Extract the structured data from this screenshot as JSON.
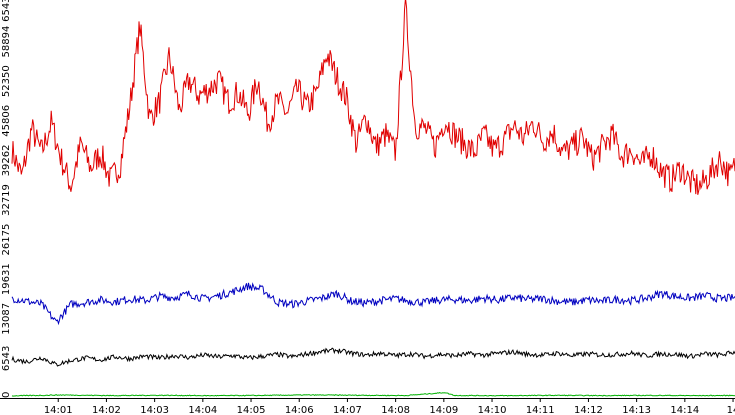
{
  "chart_data": {
    "type": "line",
    "xlabel": "",
    "ylabel": "",
    "ylim": [
      0,
      65438
    ],
    "grid": false,
    "legend": "none",
    "y_ticks": [
      {
        "value": 0,
        "label": "0"
      },
      {
        "value": 6543,
        "label": "6543"
      },
      {
        "value": 13087,
        "label": "13087"
      },
      {
        "value": 19631,
        "label": "19631"
      },
      {
        "value": 26175,
        "label": "26175"
      },
      {
        "value": 32719,
        "label": "32719"
      },
      {
        "value": 39262,
        "label": "39262"
      },
      {
        "value": 45806,
        "label": "45806"
      },
      {
        "value": 52350,
        "label": "52350"
      },
      {
        "value": 58894,
        "label": "58894"
      },
      {
        "value": 65438,
        "label": "65438"
      }
    ],
    "x_range_minutes": [
      0,
      14.7
    ],
    "x_ticks": [
      {
        "value": 0.94,
        "label": "14:01"
      },
      {
        "value": 1.92,
        "label": "14:02"
      },
      {
        "value": 2.9,
        "label": "14:03"
      },
      {
        "value": 3.88,
        "label": "14:04"
      },
      {
        "value": 4.86,
        "label": "14:05"
      },
      {
        "value": 5.84,
        "label": "14:06"
      },
      {
        "value": 6.82,
        "label": "14:07"
      },
      {
        "value": 7.8,
        "label": "14:08"
      },
      {
        "value": 8.78,
        "label": "14:09"
      },
      {
        "value": 9.76,
        "label": "14:10"
      },
      {
        "value": 10.74,
        "label": "14:11"
      },
      {
        "value": 11.72,
        "label": "14:12"
      },
      {
        "value": 12.7,
        "label": "14:13"
      },
      {
        "value": 13.68,
        "label": "14:14"
      },
      {
        "value": 14.66,
        "label": "14"
      }
    ],
    "series": [
      {
        "color": "#e00000",
        "x": [
          0,
          0.2,
          0.4,
          0.6,
          0.8,
          1.0,
          1.2,
          1.4,
          1.6,
          1.8,
          2.0,
          2.2,
          2.4,
          2.6,
          2.8,
          3.0,
          3.2,
          3.4,
          3.6,
          3.8,
          4.0,
          4.2,
          4.4,
          4.6,
          4.8,
          5.0,
          5.2,
          5.4,
          5.6,
          5.8,
          6.0,
          6.2,
          6.4,
          6.6,
          6.8,
          7.0,
          7.2,
          7.4,
          7.6,
          7.8,
          8.0,
          8.2,
          8.4,
          8.6,
          8.8,
          9.0,
          9.2,
          9.4,
          9.6,
          9.8,
          10.0,
          10.2,
          10.4,
          10.6,
          10.8,
          11.0,
          11.2,
          11.4,
          11.6,
          11.8,
          12.0,
          12.2,
          12.4,
          12.6,
          12.8,
          13.0,
          13.2,
          13.4,
          13.6,
          13.8,
          14.0,
          14.2,
          14.4,
          14.6,
          14.7
        ],
        "y": [
          41000,
          36500,
          44500,
          40500,
          45500,
          39500,
          35000,
          42000,
          38000,
          40500,
          36000,
          38500,
          48500,
          61500,
          46000,
          49000,
          56500,
          47500,
          52500,
          50000,
          51000,
          52500,
          49000,
          50500,
          47000,
          52500,
          45500,
          49000,
          47000,
          51000,
          48000,
          50500,
          57000,
          53000,
          49500,
          42000,
          46500,
          41500,
          43500,
          40500,
          64500,
          45000,
          44500,
          41500,
          46000,
          43500,
          42000,
          40500,
          43500,
          41000,
          42500,
          45000,
          43000,
          45500,
          42500,
          44000,
          40500,
          41500,
          43000,
          39500,
          41500,
          43500,
          40000,
          41000,
          38500,
          40500,
          37500,
          36000,
          38000,
          35500,
          35000,
          37000,
          39500,
          36500,
          38500
        ]
      },
      {
        "color": "#0000c0",
        "x": [
          0,
          0.3,
          0.6,
          0.9,
          1.2,
          1.5,
          1.8,
          2.1,
          2.4,
          2.7,
          3.0,
          3.3,
          3.6,
          3.9,
          4.2,
          4.5,
          4.8,
          5.1,
          5.4,
          5.7,
          6.0,
          6.3,
          6.6,
          6.9,
          7.2,
          7.5,
          7.8,
          8.1,
          8.4,
          8.7,
          9.0,
          9.3,
          9.6,
          9.9,
          10.2,
          10.5,
          10.8,
          11.1,
          11.4,
          11.7,
          12.0,
          12.3,
          12.6,
          12.9,
          13.2,
          13.5,
          13.8,
          14.1,
          14.4,
          14.7
        ],
        "y": [
          16500,
          16000,
          15500,
          12500,
          15500,
          15800,
          16200,
          15900,
          16400,
          16100,
          16800,
          16600,
          17200,
          16400,
          16900,
          17600,
          18500,
          17900,
          15800,
          15500,
          16000,
          16500,
          17300,
          16000,
          15700,
          16100,
          16400,
          16000,
          15800,
          16200,
          16300,
          16100,
          16500,
          16200,
          16600,
          16300,
          16400,
          16000,
          15800,
          16200,
          16000,
          16300,
          16100,
          16500,
          17300,
          16800,
          16500,
          16900,
          16400,
          16600
        ]
      },
      {
        "color": "#000000",
        "x": [
          0,
          0.3,
          0.6,
          0.9,
          1.2,
          1.5,
          1.8,
          2.1,
          2.4,
          2.7,
          3.0,
          3.3,
          3.6,
          3.9,
          4.2,
          4.5,
          4.8,
          5.1,
          5.4,
          5.7,
          6.0,
          6.3,
          6.6,
          6.9,
          7.2,
          7.5,
          7.8,
          8.1,
          8.4,
          8.7,
          9.0,
          9.3,
          9.6,
          9.9,
          10.2,
          10.5,
          10.8,
          11.1,
          11.4,
          11.7,
          12.0,
          12.3,
          12.6,
          12.9,
          13.2,
          13.5,
          13.8,
          14.1,
          14.4,
          14.7
        ],
        "y": [
          6400,
          6000,
          6700,
          5500,
          6200,
          6600,
          6300,
          6800,
          6500,
          6900,
          6600,
          7000,
          6700,
          7100,
          6800,
          7000,
          6600,
          6900,
          7200,
          6800,
          7300,
          7700,
          7900,
          7400,
          7100,
          7400,
          7000,
          7300,
          6900,
          7200,
          7000,
          7300,
          7100,
          7400,
          7600,
          7200,
          7100,
          7400,
          7000,
          7300,
          7100,
          7200,
          7400,
          7000,
          7300,
          7200,
          6900,
          7300,
          7100,
          7600
        ]
      },
      {
        "color": "#00b000",
        "x": [
          0,
          1,
          2,
          3,
          4,
          5,
          6,
          7,
          8,
          8.8,
          9,
          10,
          11,
          12,
          13,
          14,
          14.7
        ],
        "y": [
          350,
          500,
          400,
          450,
          380,
          420,
          500,
          460,
          400,
          900,
          420,
          380,
          440,
          400,
          430,
          390,
          420
        ]
      }
    ]
  }
}
